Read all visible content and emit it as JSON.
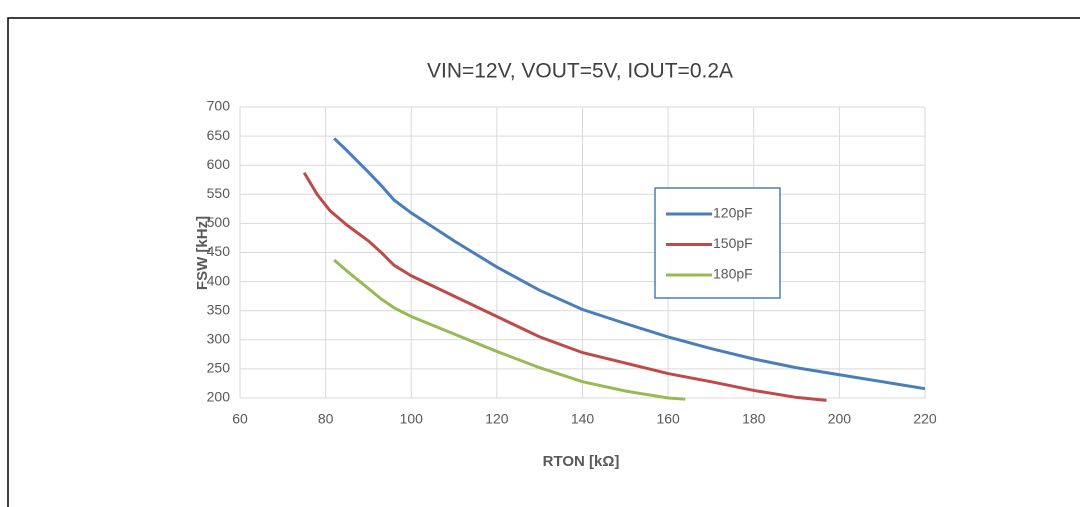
{
  "chart_data": {
    "type": "line",
    "title": "VIN=12V, VOUT=5V, IOUT=0.2A",
    "x_label": "RTON [kΩ]",
    "y_label": "FSW [kHz]",
    "xlim": [
      60,
      220
    ],
    "xticks": [
      60,
      80,
      100,
      120,
      140,
      160,
      180,
      200,
      220
    ],
    "ylim": [
      200,
      700
    ],
    "yticks": [
      200,
      250,
      300,
      350,
      400,
      450,
      500,
      550,
      600,
      650,
      700
    ],
    "grid": true,
    "legend": "right",
    "series": [
      {
        "name": "120pF",
        "color": "#4a7ebb",
        "x": [
          82,
          85,
          90,
          93,
          96,
          100,
          110,
          120,
          130,
          140,
          150,
          160,
          170,
          180,
          190,
          200,
          210,
          220
        ],
        "values": [
          646,
          625,
          588,
          565,
          540,
          518,
          470,
          425,
          385,
          352,
          328,
          305,
          285,
          267,
          252,
          240,
          228,
          216
        ]
      },
      {
        "name": "150pF",
        "color": "#be4b48",
        "x": [
          75,
          78,
          81,
          85,
          90,
          93,
          96,
          100,
          110,
          120,
          130,
          140,
          150,
          160,
          170,
          180,
          190,
          197
        ],
        "values": [
          587,
          550,
          522,
          497,
          470,
          450,
          428,
          410,
          375,
          340,
          305,
          278,
          260,
          242,
          228,
          213,
          201,
          196
        ]
      },
      {
        "name": "180pF",
        "color": "#98b954",
        "x": [
          82,
          85,
          90,
          93,
          96,
          100,
          110,
          120,
          130,
          140,
          150,
          160,
          164
        ],
        "values": [
          437,
          418,
          388,
          370,
          355,
          340,
          310,
          280,
          252,
          228,
          212,
          200,
          198
        ]
      }
    ]
  }
}
